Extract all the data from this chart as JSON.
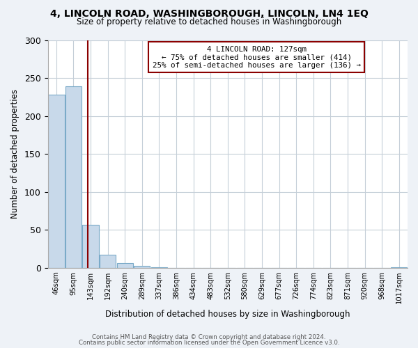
{
  "title": "4, LINCOLN ROAD, WASHINGBOROUGH, LINCOLN, LN4 1EQ",
  "subtitle": "Size of property relative to detached houses in Washingborough",
  "xlabel": "Distribution of detached houses by size in Washingborough",
  "ylabel": "Number of detached properties",
  "bar_values": [
    228,
    239,
    57,
    17,
    6,
    2,
    1,
    0,
    0,
    0,
    0,
    0,
    0,
    0,
    0,
    0,
    0,
    0,
    0,
    0,
    1
  ],
  "bin_labels": [
    "46sqm",
    "95sqm",
    "143sqm",
    "192sqm",
    "240sqm",
    "289sqm",
    "337sqm",
    "386sqm",
    "434sqm",
    "483sqm",
    "532sqm",
    "580sqm",
    "629sqm",
    "677sqm",
    "726sqm",
    "774sqm",
    "823sqm",
    "871sqm",
    "920sqm",
    "968sqm",
    "1017sqm"
  ],
  "bar_color": "#c8d9ea",
  "bar_edge_color": "#7aaac8",
  "red_line_x": 1.82,
  "annotation_title": "4 LINCOLN ROAD: 127sqm",
  "annotation_line1": "← 75% of detached houses are smaller (414)",
  "annotation_line2": "25% of semi-detached houses are larger (136) →",
  "ylim": [
    0,
    300
  ],
  "yticks": [
    0,
    50,
    100,
    150,
    200,
    250,
    300
  ],
  "footer1": "Contains HM Land Registry data © Crown copyright and database right 2024.",
  "footer2": "Contains public sector information licensed under the Open Government Licence v3.0.",
  "bg_color": "#eef2f7",
  "plot_bg_color": "#ffffff"
}
